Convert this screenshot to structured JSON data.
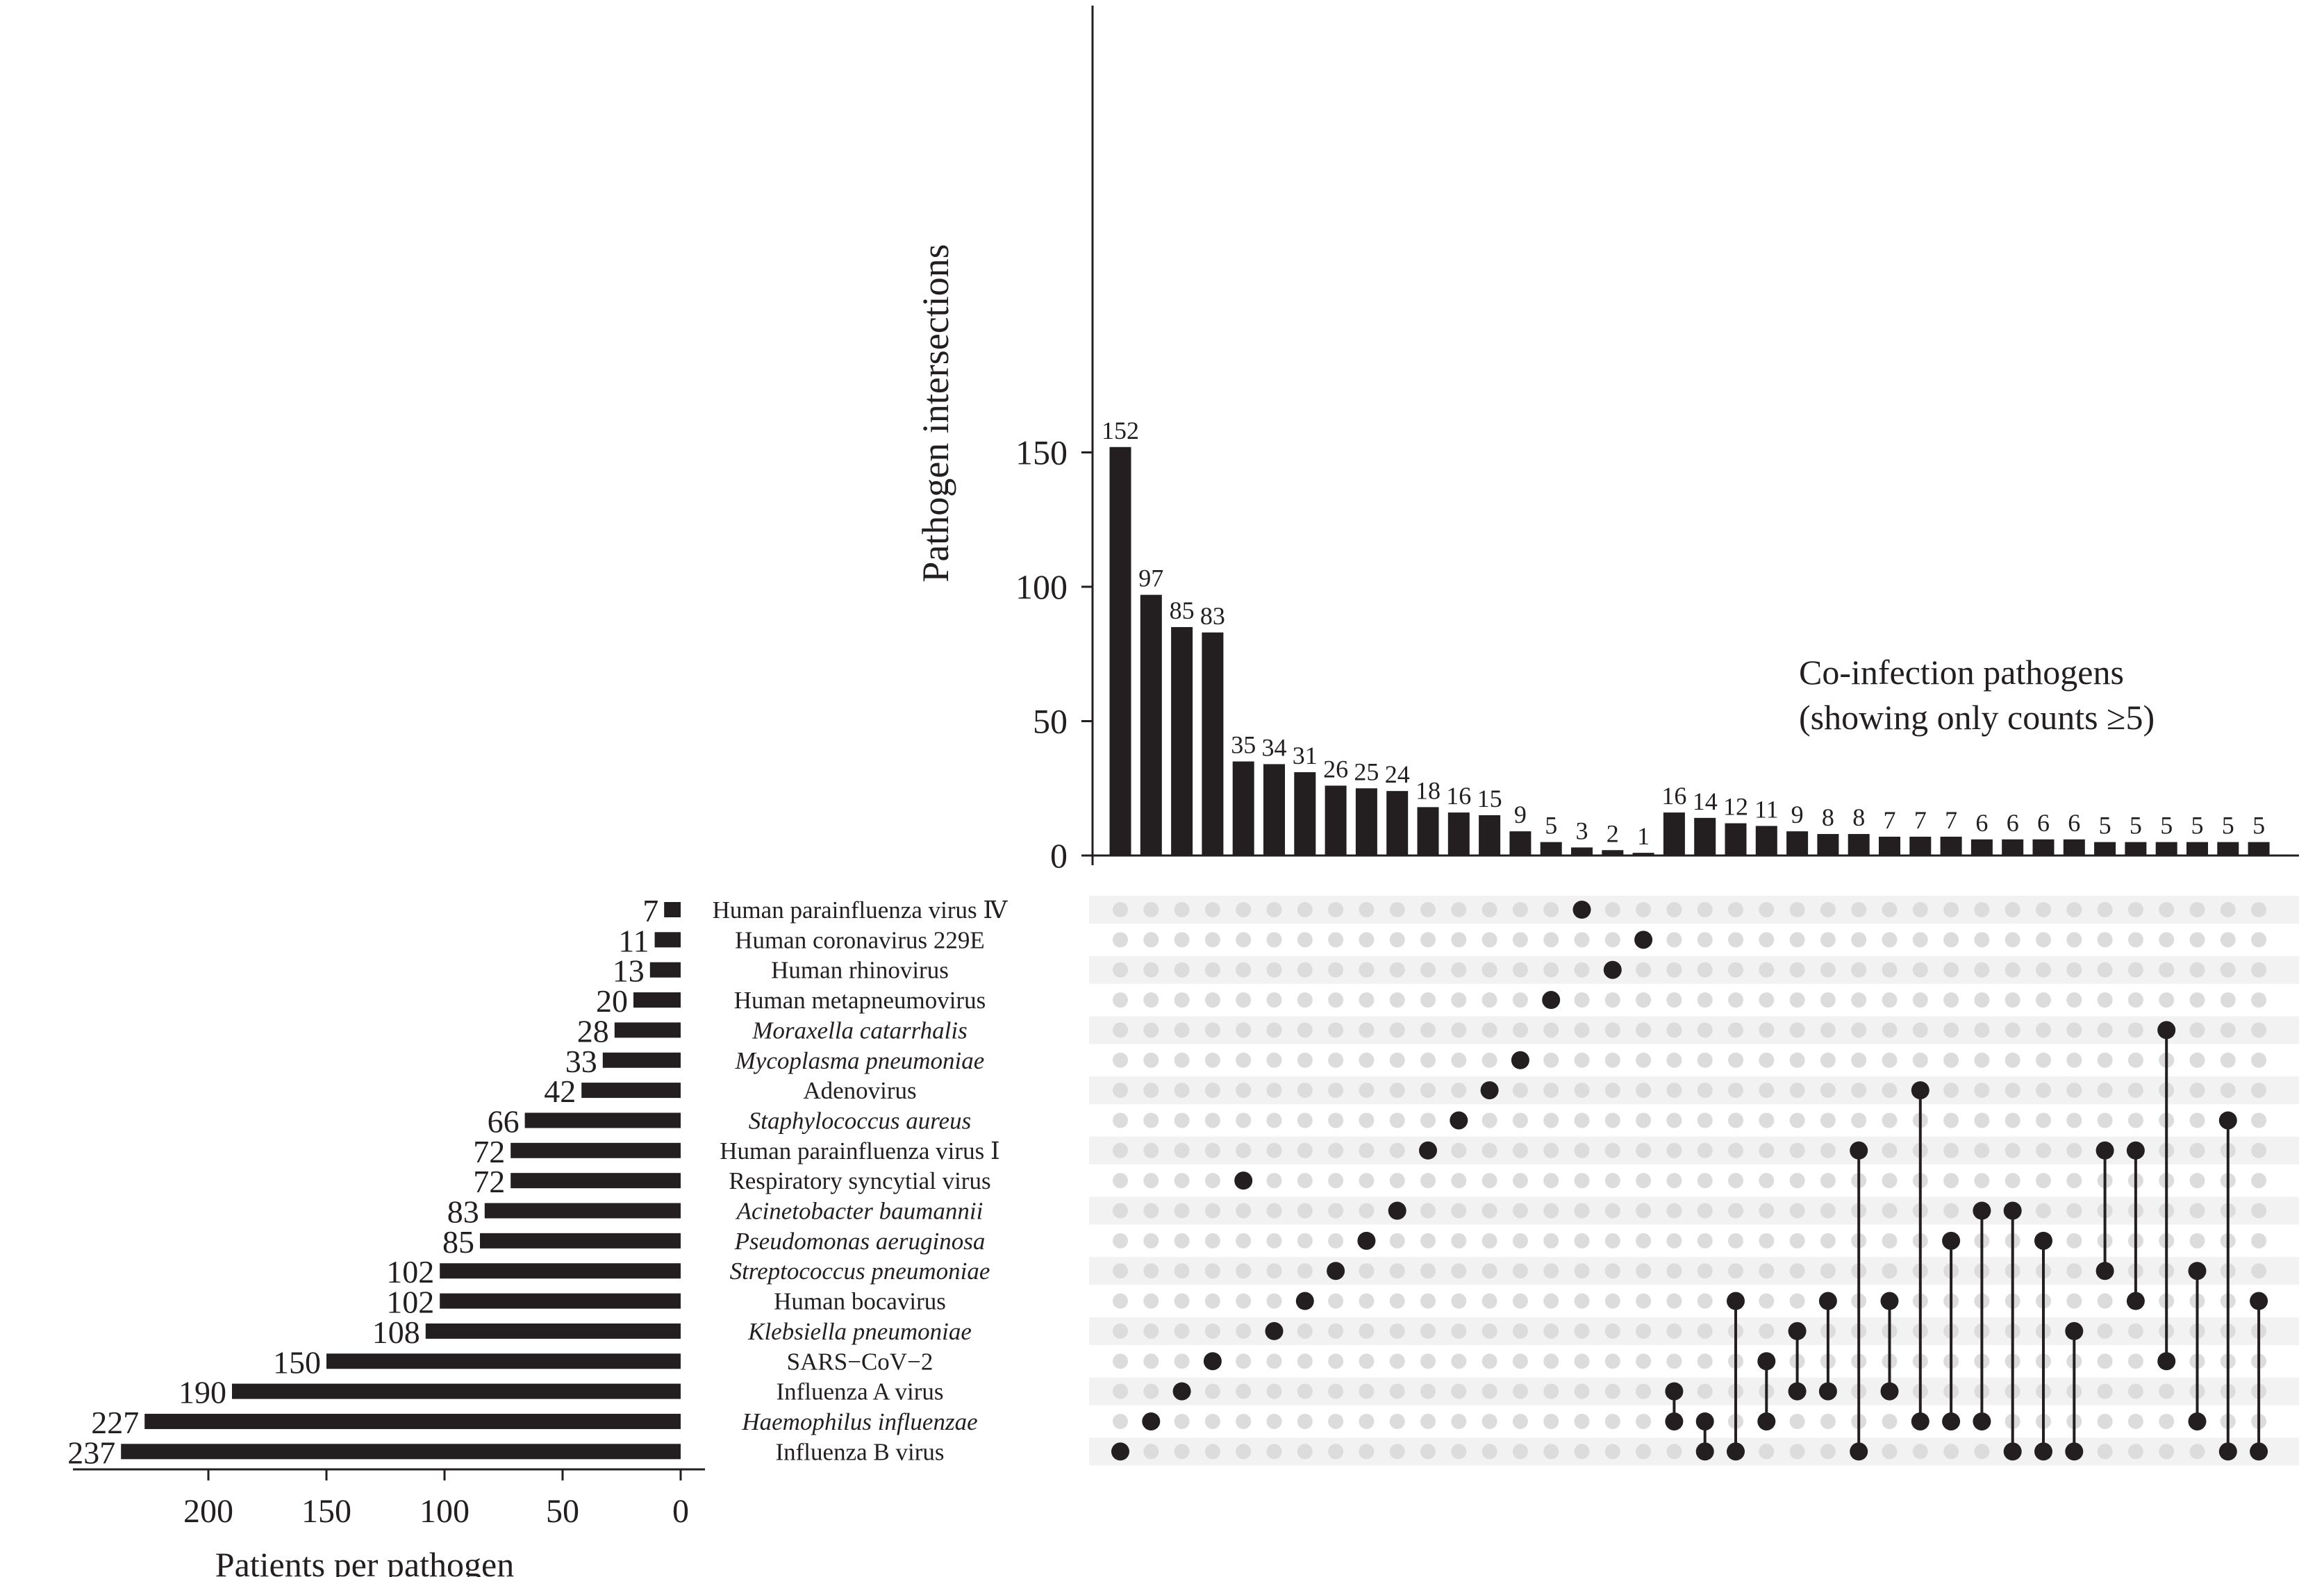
{
  "chart_data": {
    "type": "upset",
    "top_panel": {
      "type": "bar",
      "ylabel": "Pathogen intersections",
      "ylim": [
        0,
        160
      ],
      "yticks": [
        0,
        50,
        100,
        150
      ],
      "values": [
        152,
        97,
        85,
        83,
        35,
        34,
        31,
        26,
        25,
        24,
        18,
        16,
        15,
        9,
        5,
        3,
        2,
        1,
        16,
        14,
        12,
        11,
        9,
        8,
        8,
        7,
        7,
        7,
        6,
        6,
        6,
        6,
        5,
        5,
        5,
        5,
        5,
        5
      ],
      "annotation_line1": "Co-infection pathogens",
      "annotation_line2": "(showing only counts ≥5)"
    },
    "left_panel": {
      "type": "bar",
      "xlabel": "Patients per pathogen",
      "xlim": [
        0,
        250
      ],
      "xticks": [
        200,
        150,
        100,
        50,
        0
      ],
      "pathogens": [
        {
          "name": "Human parainfluenza virus Ⅳ",
          "count": 7,
          "italic": false
        },
        {
          "name": "Human coronavirus 229E",
          "count": 11,
          "italic": false
        },
        {
          "name": "Human rhinovirus",
          "count": 13,
          "italic": false
        },
        {
          "name": "Human metapneumovirus",
          "count": 20,
          "italic": false
        },
        {
          "name": "Moraxella catarrhalis",
          "count": 28,
          "italic": true
        },
        {
          "name": "Mycoplasma pneumoniae",
          "count": 33,
          "italic": true
        },
        {
          "name": "Adenovirus",
          "count": 42,
          "italic": false
        },
        {
          "name": "Staphylococcus aureus",
          "count": 66,
          "italic": true
        },
        {
          "name": "Human parainfluenza virus Ⅰ",
          "count": 72,
          "italic": false
        },
        {
          "name": "Respiratory syncytial virus",
          "count": 72,
          "italic": false
        },
        {
          "name": "Acinetobacter baumannii",
          "count": 83,
          "italic": true
        },
        {
          "name": "Pseudomonas aeruginosa",
          "count": 85,
          "italic": true
        },
        {
          "name": "Streptococcus pneumoniae",
          "count": 102,
          "italic": true
        },
        {
          "name": "Human bocavirus",
          "count": 102,
          "italic": false
        },
        {
          "name": "Klebsiella pneumoniae",
          "count": 108,
          "italic": true
        },
        {
          "name": "SARS−CoV−2",
          "count": 150,
          "italic": false
        },
        {
          "name": "Influenza A virus",
          "count": 190,
          "italic": false
        },
        {
          "name": "Haemophilus influenzae",
          "count": 227,
          "italic": true
        },
        {
          "name": "Influenza B virus",
          "count": 237,
          "italic": false
        }
      ]
    },
    "matrix": {
      "note": "Each entry lists the pathogen row indices (0 = top row) active in that intersection column, in column order.",
      "columns": [
        [
          18
        ],
        [
          17
        ],
        [
          16
        ],
        [
          15
        ],
        [
          9
        ],
        [
          14
        ],
        [
          13
        ],
        [
          12
        ],
        [
          11
        ],
        [
          10
        ],
        [
          8
        ],
        [
          7
        ],
        [
          6
        ],
        [
          5
        ],
        [
          3
        ],
        [
          0
        ],
        [
          2
        ],
        [
          1
        ],
        [
          16,
          17
        ],
        [
          17,
          18
        ],
        [
          13,
          18
        ],
        [
          15,
          17
        ],
        [
          14,
          16
        ],
        [
          13,
          16
        ],
        [
          8,
          18
        ],
        [
          13,
          16
        ],
        [
          6,
          17
        ],
        [
          11,
          17
        ],
        [
          10,
          17
        ],
        [
          10,
          18
        ],
        [
          11,
          18
        ],
        [
          14,
          18
        ],
        [
          8,
          12
        ],
        [
          8,
          13
        ],
        [
          4,
          15
        ],
        [
          12,
          17
        ],
        [
          7,
          18
        ],
        [
          13,
          18
        ]
      ]
    },
    "colors": {
      "bar": "#231f20",
      "dot_active": "#231f20",
      "dot_inactive": "#dcdcdc",
      "stripe": "#f2f2f2"
    }
  }
}
